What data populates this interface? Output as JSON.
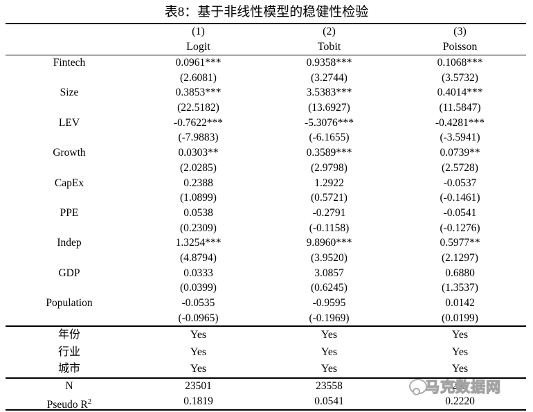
{
  "title": "表8：基于非线性模型的稳健性检验",
  "colors": {
    "background": "#ffffff",
    "text": "#000000",
    "watermark": "#a3a3a3"
  },
  "table": {
    "header": {
      "numbers": [
        "(1)",
        "(2)",
        "(3)"
      ],
      "models": [
        "Logit",
        "Tobit",
        "Poisson"
      ]
    },
    "variables": [
      {
        "label": "Fintech",
        "coef": [
          "0.0961***",
          "0.9358***",
          "0.1068***"
        ],
        "t": [
          "(2.6081)",
          "(3.2744)",
          "(3.5732)"
        ]
      },
      {
        "label": "Size",
        "coef": [
          "0.3853***",
          "3.5383***",
          "0.4014***"
        ],
        "t": [
          "(22.5182)",
          "(13.6927)",
          "(11.5847)"
        ]
      },
      {
        "label": "LEV",
        "coef": [
          "-0.7622***",
          "-5.3076***",
          "-0.4281***"
        ],
        "t": [
          "(-7.9883)",
          "(-6.1655)",
          "(-3.5941)"
        ]
      },
      {
        "label": "Growth",
        "coef": [
          "0.0303**",
          "0.3589***",
          "0.0739**"
        ],
        "t": [
          "(2.0285)",
          "(2.9798)",
          "(2.5728)"
        ]
      },
      {
        "label": "CapEx",
        "coef": [
          "0.2388",
          "1.2922",
          "-0.0537"
        ],
        "t": [
          "(1.0899)",
          "(0.5721)",
          "(-0.1461)"
        ]
      },
      {
        "label": "PPE",
        "coef": [
          "0.0538",
          "-0.2791",
          "-0.0541"
        ],
        "t": [
          "(0.2309)",
          "(-0.1158)",
          "(-0.1276)"
        ]
      },
      {
        "label": "Indep",
        "coef": [
          "1.3254***",
          "9.8960***",
          "0.5977**"
        ],
        "t": [
          "(4.8794)",
          "(3.9520)",
          "(2.1297)"
        ]
      },
      {
        "label": "GDP",
        "coef": [
          "0.0333",
          "3.0857",
          "0.6880"
        ],
        "t": [
          "(0.0399)",
          "(0.6245)",
          "(1.3537)"
        ]
      },
      {
        "label": "Population",
        "coef": [
          "-0.0535",
          "-0.9595",
          "0.0142"
        ],
        "t": [
          "(-0.0965)",
          "(-0.1969)",
          "(0.0199)"
        ]
      }
    ],
    "fixed_effects": [
      {
        "label": "年份",
        "values": [
          "Yes",
          "Yes",
          "Yes"
        ]
      },
      {
        "label": "行业",
        "values": [
          "Yes",
          "Yes",
          "Yes"
        ]
      },
      {
        "label": "城市",
        "values": [
          "Yes",
          "Yes",
          "Yes"
        ]
      }
    ],
    "stats": [
      {
        "label": "N",
        "values": [
          "23501",
          "23558",
          "235"
        ]
      },
      {
        "label": "Pseudo R",
        "label_sup": "2",
        "values": [
          "0.1819",
          "0.0541",
          "0.2220"
        ]
      }
    ]
  },
  "watermark": {
    "text": "马克数据网"
  }
}
